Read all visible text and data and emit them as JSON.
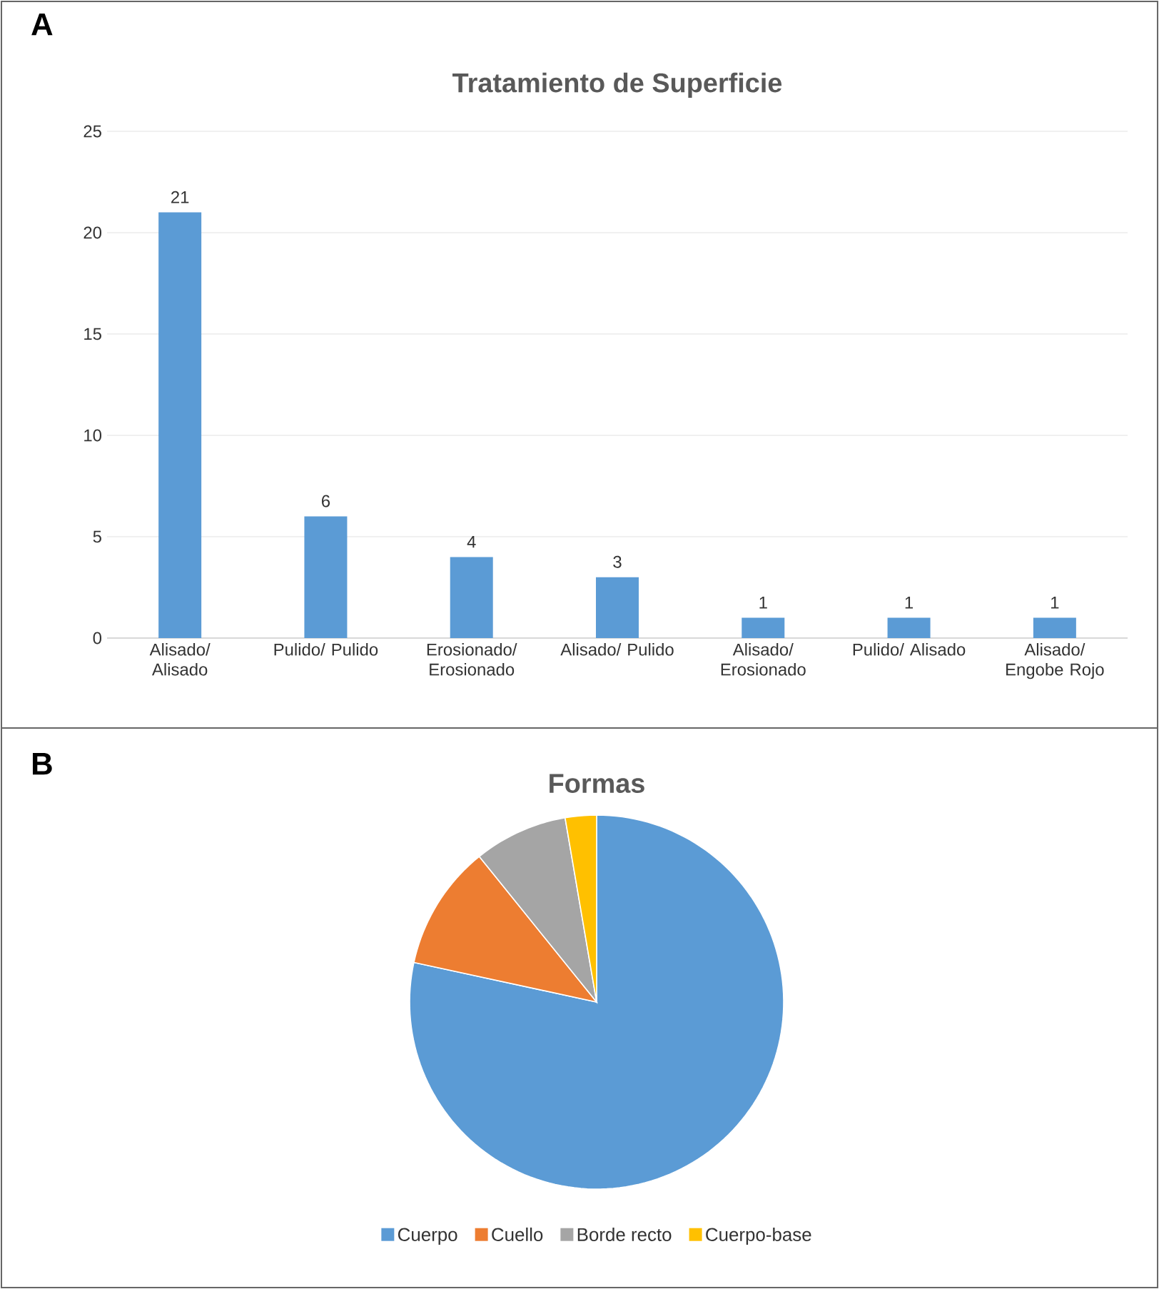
{
  "chart_data": [
    {
      "type": "bar",
      "title": "Tratamiento de Superficie",
      "annotations": [
        "A"
      ],
      "categories": [
        "Alisado/ Alisado",
        "Pulido/ Pulido",
        "Erosionado/ Erosionado",
        "Alisado/ Pulido",
        "Alisado/ Erosionado",
        "Pulido/ Alisado",
        "Alisado/ Engobe Rojo"
      ],
      "values": [
        21,
        6,
        4,
        3,
        1,
        1,
        1
      ],
      "color": "#5b9bd5",
      "ylim": [
        0,
        25
      ],
      "yticks": [
        0,
        5,
        10,
        15,
        20,
        25
      ],
      "grid": "y",
      "data_labels": true
    },
    {
      "type": "pie",
      "title": "Formas",
      "annotations": [
        "B"
      ],
      "categories": [
        "Cuerpo",
        "Cuello",
        "Borde recto",
        "Cuerpo-base"
      ],
      "values": [
        78.4,
        10.8,
        8.1,
        2.7
      ],
      "colors": [
        "#5b9bd5",
        "#ed7d31",
        "#a5a5a5",
        "#ffc000"
      ],
      "legend": "bottom"
    }
  ]
}
